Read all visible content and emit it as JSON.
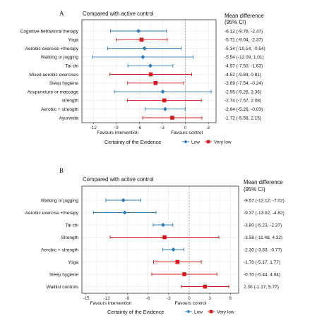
{
  "chart_data": [
    {
      "type": "forest",
      "panel": "A",
      "title": "Compared with active control",
      "right_header": [
        "Mean difference",
        "(95% CI)"
      ],
      "x_ticks": [
        -12,
        -9,
        -6,
        -3,
        0,
        3
      ],
      "xlim": [
        -13.5,
        4
      ],
      "x_label_left": "Favours intervention",
      "x_label_right": "Favours control",
      "rows": [
        {
          "label": "Cognitive behavioral therapy",
          "mean": -6.12,
          "lo": -9.76,
          "hi": -2.47,
          "ci_text": "-6.12 (-9.76, -2.47)",
          "certainty": "Low"
        },
        {
          "label": "Yoga",
          "mean": -5.71,
          "lo": -9.04,
          "hi": -2.37,
          "ci_text": "-5.71 (-9.04, -2.37)",
          "certainty": "Very low"
        },
        {
          "label": "Aerobic exercise +therapy",
          "mean": -5.34,
          "lo": -10.14,
          "hi": -0.54,
          "ci_text": "-5.34 (-10.14, -0.54)",
          "certainty": "Low"
        },
        {
          "label": "Walking or jogging",
          "mean": -5.54,
          "lo": -12.09,
          "hi": 1.01,
          "ci_text": "-5.54 (-12.09, 1.01)",
          "certainty": "Low"
        },
        {
          "label": "Tai chi",
          "mean": -4.57,
          "lo": -7.5,
          "hi": -1.63,
          "ci_text": "-4.57 (-7.50, -1.63)",
          "certainty": "Low"
        },
        {
          "label": "Mixed aerobic exercises",
          "mean": -4.52,
          "lo": -9.84,
          "hi": 0.81,
          "ci_text": "-4.52 (-9.84, 0.81)",
          "certainty": "Very low"
        },
        {
          "label": "Sleep hygiene",
          "mean": -3.89,
          "lo": -7.54,
          "hi": -0.24,
          "ci_text": "-3.89 (-7.54, -0.24)",
          "certainty": "Very low"
        },
        {
          "label": "Acupuncture or massage",
          "mean": -2.95,
          "lo": -9.26,
          "hi": 3.36,
          "ci_text": "-2.95 (-9.26, 3.36)",
          "certainty": "Low"
        },
        {
          "label": "strength",
          "mean": -2.74,
          "lo": -7.57,
          "hi": 2.08,
          "ci_text": "-2.74 (-7.57, 2.08)",
          "certainty": "Very low"
        },
        {
          "label": "Aerobic + strength",
          "mean": -2.64,
          "lo": -5.26,
          "hi": -0.03,
          "ci_text": "-2.64 (-5.26, -0.03)",
          "certainty": "Low"
        },
        {
          "label": "Ayurveda",
          "mean": -1.72,
          "lo": -5.58,
          "hi": 2.15,
          "ci_text": "-1.72 (-5.58, 2.15)",
          "certainty": "Very low"
        }
      ],
      "legend": {
        "title": "Certainty of the Evidence",
        "items": [
          "Low",
          "Very low"
        ]
      }
    },
    {
      "type": "forest",
      "panel": "B",
      "title": "Compared with active control",
      "right_header": [
        "Mean difference",
        "(95% CI)"
      ],
      "x_ticks": [
        -15,
        -12,
        -9,
        -6,
        -3,
        0,
        3,
        6
      ],
      "xlim": [
        -15.6,
        7.2
      ],
      "x_label_left": "Favours intervention",
      "x_label_right": "Favours control",
      "rows": [
        {
          "label": "Walking or jogging",
          "mean": -9.57,
          "lo": -12.12,
          "hi": -7.02,
          "ci_text": "-9.57 (-12.12, -7.02)",
          "certainty": "Low"
        },
        {
          "label": "Aerobic exercise +therapy",
          "mean": -9.37,
          "lo": -13.92,
          "hi": -4.82,
          "ci_text": "-9.37 (-13.92, -4.82)",
          "certainty": "Low"
        },
        {
          "label": "Tai chi",
          "mean": -3.8,
          "lo": -5.23,
          "hi": -2.37,
          "ci_text": "-3.80 (-5.23, -2.37)",
          "certainty": "Low"
        },
        {
          "label": "Strength",
          "mean": -3.58,
          "lo": -11.48,
          "hi": 4.32,
          "ci_text": "-3.58 (-11.48, 4.32)",
          "certainty": "Very low"
        },
        {
          "label": "Aerobic + strength",
          "mean": -2.3,
          "lo": -3.83,
          "hi": -0.77,
          "ci_text": "-2.30 (-3.83, -0.77)",
          "certainty": "Low"
        },
        {
          "label": "Yoga",
          "mean": -1.7,
          "lo": -5.17,
          "hi": 1.77,
          "ci_text": "-1.70 (-5.17, 1.77)",
          "certainty": "Very low"
        },
        {
          "label": "Sleep hygiene",
          "mean": -0.7,
          "lo": -5.44,
          "hi": 4.04,
          "ci_text": "-0.70 (-5.44, 4.04)",
          "certainty": "Very low"
        },
        {
          "label": "Waitlist controls",
          "mean": 2.3,
          "lo": -1.17,
          "hi": 5.77,
          "ci_text": "2.30 (-1.17, 5.77)",
          "certainty": "Very low"
        }
      ],
      "legend": {
        "title": "Certainty of the Evidence",
        "items": [
          "Low",
          "Very low"
        ]
      }
    }
  ],
  "colors": {
    "Low": "#2b7bba",
    "Very low": "#d7191c",
    "grid": "#e6e6e6",
    "panel_border": "#333333",
    "zero_line": "#9a9a9a"
  }
}
